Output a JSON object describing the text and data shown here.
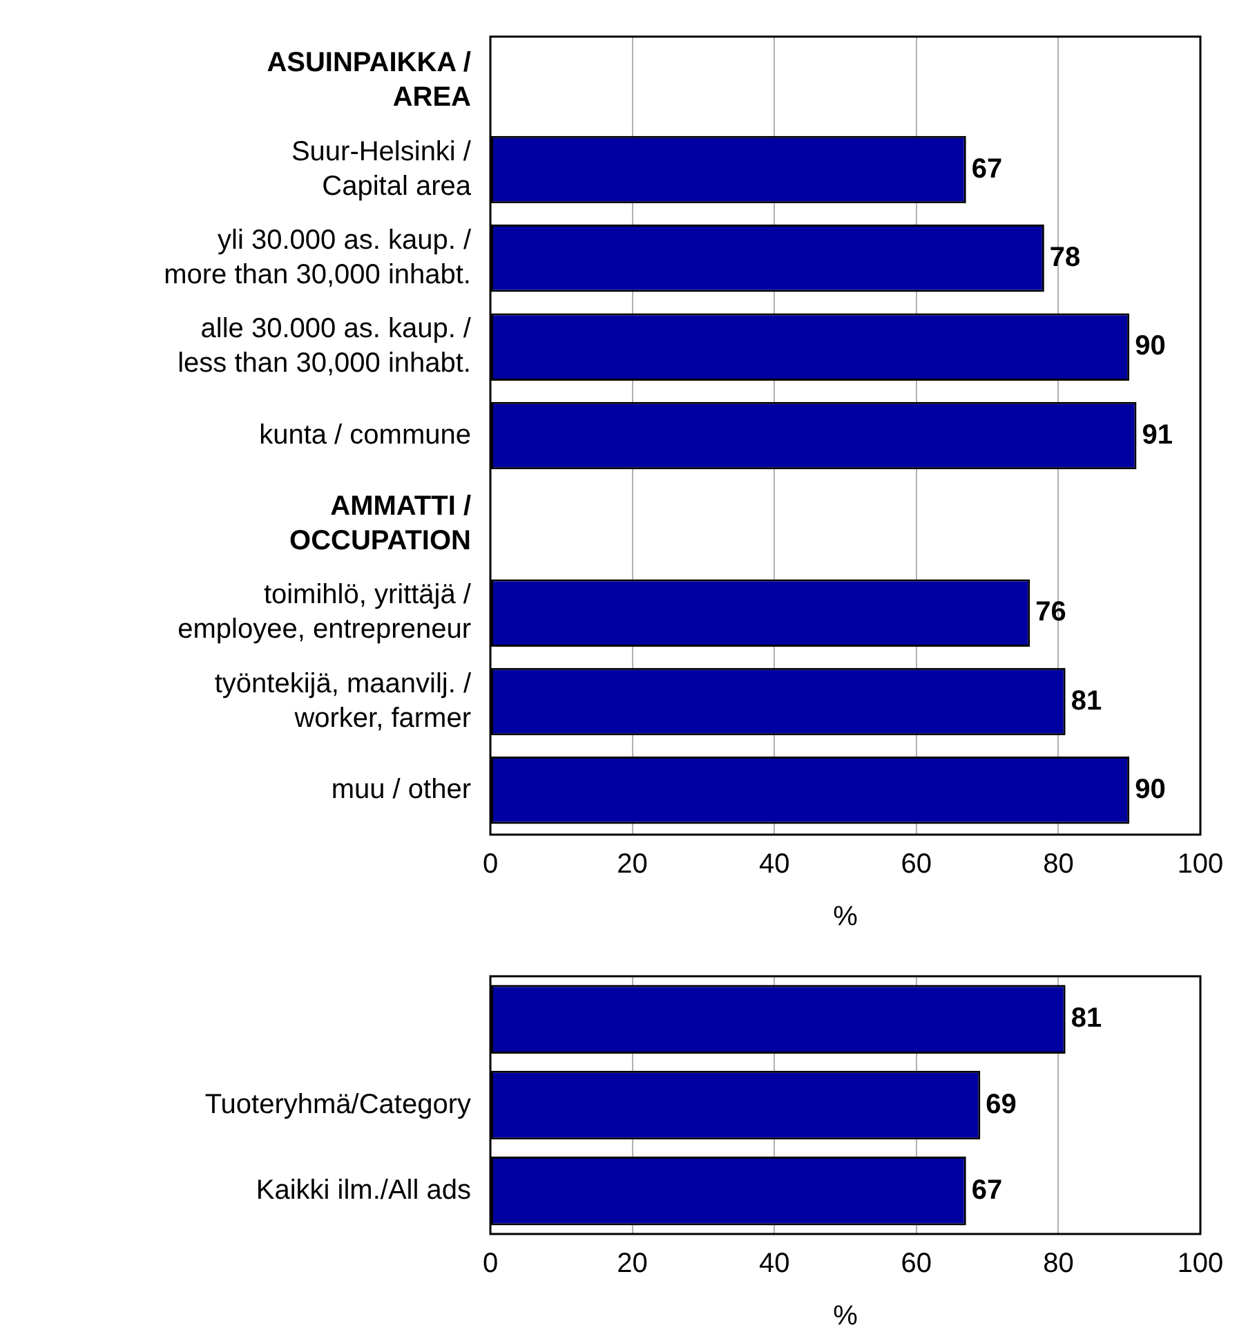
{
  "chart_data": [
    {
      "type": "bar",
      "orientation": "horizontal",
      "xlabel": "%",
      "categories": [
        "ASUINPAIKKA / AREA",
        "Suur-Helsinki / Capital area",
        "yli 30.000 as. kaup. / more than 30,000 inhabt.",
        "alle 30.000 as. kaup. / less than 30,000 inhabt.",
        "kunta / commune",
        "AMMATTI / OCCUPATION",
        "toimihlö, yrittäjä / employee, entrepreneur",
        "työntekijä, maanvilj. / worker, farmer",
        "muu / other"
      ],
      "values": [
        null,
        67,
        78,
        90,
        91,
        null,
        76,
        81,
        90
      ],
      "color": "#0000a0",
      "xlim": [
        0,
        100
      ],
      "xticks": [
        0,
        20,
        40,
        60,
        80,
        100
      ],
      "grid": "x",
      "data_labels": true,
      "legend": false
    },
    {
      "type": "bar",
      "orientation": "horizontal",
      "xlabel": "%",
      "categories": [
        null,
        "Tuoteryhmä/Category",
        "Kaikki ilm./All ads"
      ],
      "values": [
        81,
        69,
        67
      ],
      "color": "#0000a0",
      "xlim": [
        0,
        100
      ],
      "xticks": [
        0,
        20,
        40,
        60,
        80,
        100
      ],
      "grid": "x",
      "data_labels": true,
      "legend": false
    }
  ]
}
